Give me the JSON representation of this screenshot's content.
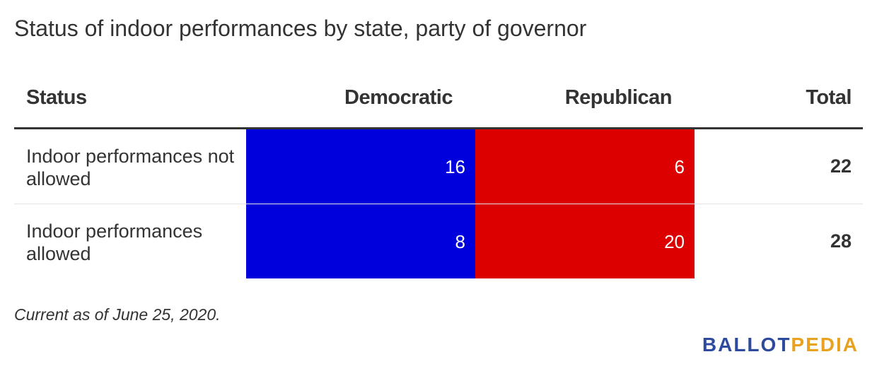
{
  "chart_data": {
    "type": "table",
    "title": "Status of indoor performances by state, party of governor",
    "columns": [
      "Status",
      "Democratic",
      "Republican",
      "Total"
    ],
    "rows": [
      {
        "status": "Indoor performances not allowed",
        "democratic": 16,
        "republican": 6,
        "total": 22
      },
      {
        "status": "Indoor performances allowed",
        "democratic": 8,
        "republican": 20,
        "total": 28
      }
    ],
    "colors": {
      "democratic": "#0000dd",
      "republican": "#dd0000"
    },
    "note": "Current as of June 25, 2020."
  },
  "logo": {
    "part1": "BALLOT",
    "part2": "PEDIA"
  }
}
